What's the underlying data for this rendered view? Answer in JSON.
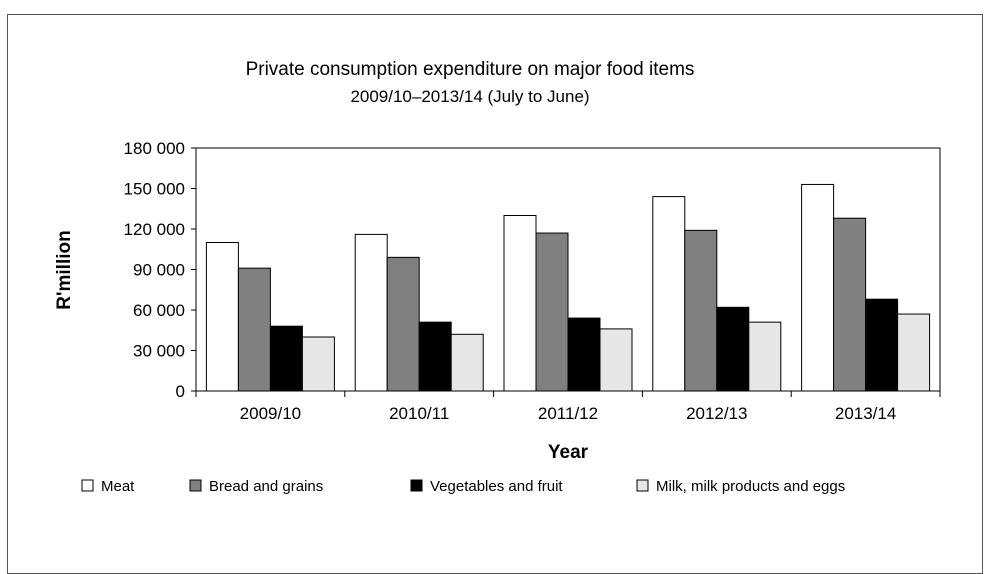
{
  "chart_data": {
    "type": "bar",
    "title": "Private consumption expenditure on major food items",
    "subtitle": "2009/10–2013/14 (July to June)",
    "xlabel": "Year",
    "ylabel": "R'million",
    "ylim": [
      0,
      180000
    ],
    "yticks": [
      "0",
      "30 000",
      "60 000",
      "90 000",
      "120 000",
      "150 000",
      "180 000"
    ],
    "categories": [
      "2009/10",
      "2010/11",
      "2011/12",
      "2012/13",
      "2013/14"
    ],
    "legend_position": "bottom",
    "grid": false,
    "series": [
      {
        "name": "Meat",
        "color": "#ffffff",
        "values": [
          110000,
          116000,
          130000,
          144000,
          153000
        ]
      },
      {
        "name": "Bread and grains",
        "color": "#808080",
        "values": [
          91000,
          99000,
          117000,
          119000,
          128000
        ]
      },
      {
        "name": "Vegetables and fruit",
        "color": "#000000",
        "values": [
          48000,
          51000,
          54000,
          62000,
          68000
        ]
      },
      {
        "name": "Milk, milk products and eggs",
        "color": "#e6e6e6",
        "values": [
          40000,
          42000,
          46000,
          51000,
          57000
        ]
      }
    ]
  }
}
